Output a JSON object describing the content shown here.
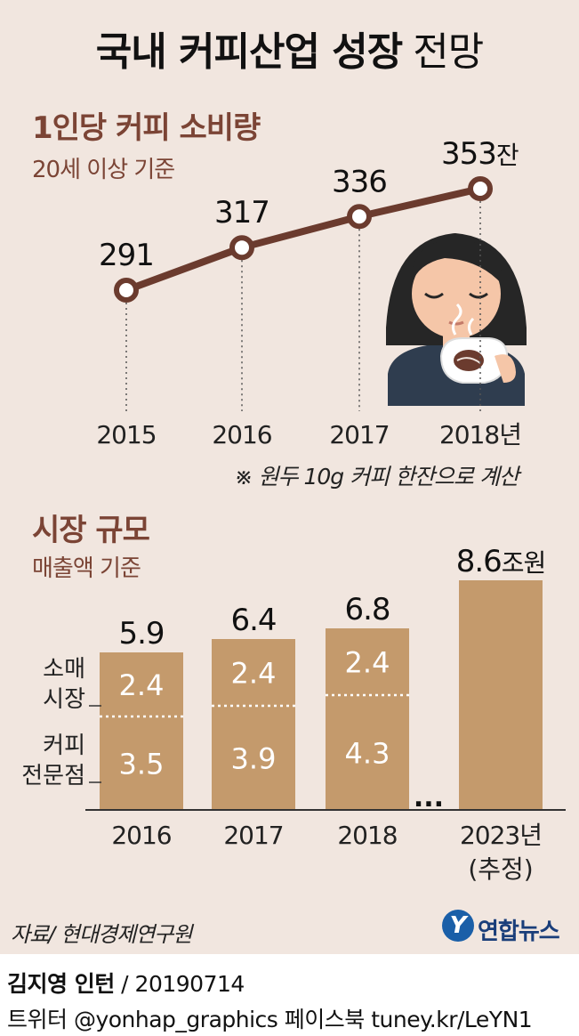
{
  "title": {
    "main": "국내 커피산업 성장",
    "suffix": "전망"
  },
  "chart_data": [
    {
      "type": "line",
      "title": "1인당 커피 소비량",
      "subtitle": "20세 이상 기준",
      "x": [
        "2015",
        "2016",
        "2017",
        "2018년"
      ],
      "values": [
        291,
        317,
        336,
        353
      ],
      "value_labels": [
        "291",
        "317",
        "336",
        "353"
      ],
      "unit": "잔",
      "note": "※ 원두 10g 커피 한잔으로 계산",
      "line_color": "#6b3b2e"
    },
    {
      "type": "bar",
      "title": "시장 규모",
      "subtitle": "매출액 기준",
      "categories": [
        "2016",
        "2017",
        "2018",
        "2023년"
      ],
      "category_sublabels": [
        "",
        "",
        "",
        "(추정)"
      ],
      "totals": [
        5.9,
        6.4,
        6.8,
        8.6
      ],
      "total_labels": [
        "5.9",
        "6.4",
        "6.8",
        "8.6"
      ],
      "total_unit": "조원",
      "series": [
        {
          "name": "커피\n전문점",
          "values": [
            3.5,
            3.9,
            4.3,
            null
          ],
          "labels": [
            "3.5",
            "3.9",
            "4.3",
            ""
          ]
        },
        {
          "name": "소매\n시장",
          "values": [
            2.4,
            2.4,
            2.4,
            null
          ],
          "labels": [
            "2.4",
            "2.4",
            "2.4",
            ""
          ]
        }
      ],
      "gap_marker": "...",
      "bar_color": "#c49a6c"
    }
  ],
  "source": "자료/ 현대경제연구원",
  "logo": {
    "mark": "Y",
    "text": "연합뉴스"
  },
  "footer": {
    "author": "김지영 인턴",
    "date": "/ 20190714",
    "social": "트위터 @yonhap_graphics  페이스북 tuney.kr/LeYN1"
  },
  "colors": {
    "background": "#f1e6df",
    "accent": "#7b4435",
    "bar": "#c49a6c",
    "line": "#6b3b2e"
  },
  "icons": {
    "illustration": "woman-drinking-coffee-icon"
  }
}
